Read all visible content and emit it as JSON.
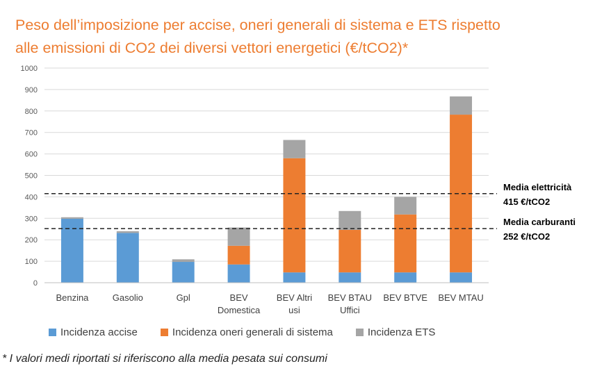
{
  "title": {
    "line1": "Peso dell’imposizione per accise, oneri generali di sistema e ETS rispetto",
    "line2": "alle emissioni di CO2 dei diversi vettori energetici (€/tCO2)*"
  },
  "colors": {
    "accise": "#5B9BD5",
    "oneri": "#ED7D31",
    "ets": "#A5A5A5",
    "title": "#ED7D31",
    "grid": "#D9D9D9"
  },
  "chart_data": {
    "type": "bar",
    "stacked": true,
    "categories": [
      [
        "Benzina"
      ],
      [
        "Gasolio"
      ],
      [
        "Gpl"
      ],
      [
        "BEV",
        "Domestica"
      ],
      [
        "BEV Altri",
        "usi"
      ],
      [
        "BEV BTAU",
        "Uffici"
      ],
      [
        "BEV BTVE"
      ],
      [
        "BEV MTAU"
      ]
    ],
    "series": [
      {
        "name": "Incidenza accise",
        "color": "#5B9BD5",
        "values": [
          298,
          232,
          97,
          85,
          48,
          48,
          48,
          48
        ]
      },
      {
        "name": "Incidenza oneri generali di sistema",
        "color": "#ED7D31",
        "values": [
          0,
          0,
          0,
          87,
          532,
          198,
          270,
          735
        ]
      },
      {
        "name": "Incidenza ETS",
        "color": "#A5A5A5",
        "values": [
          7,
          8,
          12,
          85,
          85,
          88,
          82,
          85
        ]
      }
    ],
    "ylim": [
      0,
      1000
    ],
    "yticks": [
      0,
      100,
      200,
      300,
      400,
      500,
      600,
      700,
      800,
      900,
      1000
    ],
    "grid": true,
    "legend_position": "bottom",
    "reference_lines": [
      {
        "value": 415,
        "label_line1": "Media elettricità",
        "label_line2": "415 €/tCO2"
      },
      {
        "value": 252,
        "label_line1": "Media carburanti",
        "label_line2": "252 €/tCO2"
      }
    ]
  },
  "footnote": "* I valori medi riportati si riferiscono alla media pesata sui consumi"
}
